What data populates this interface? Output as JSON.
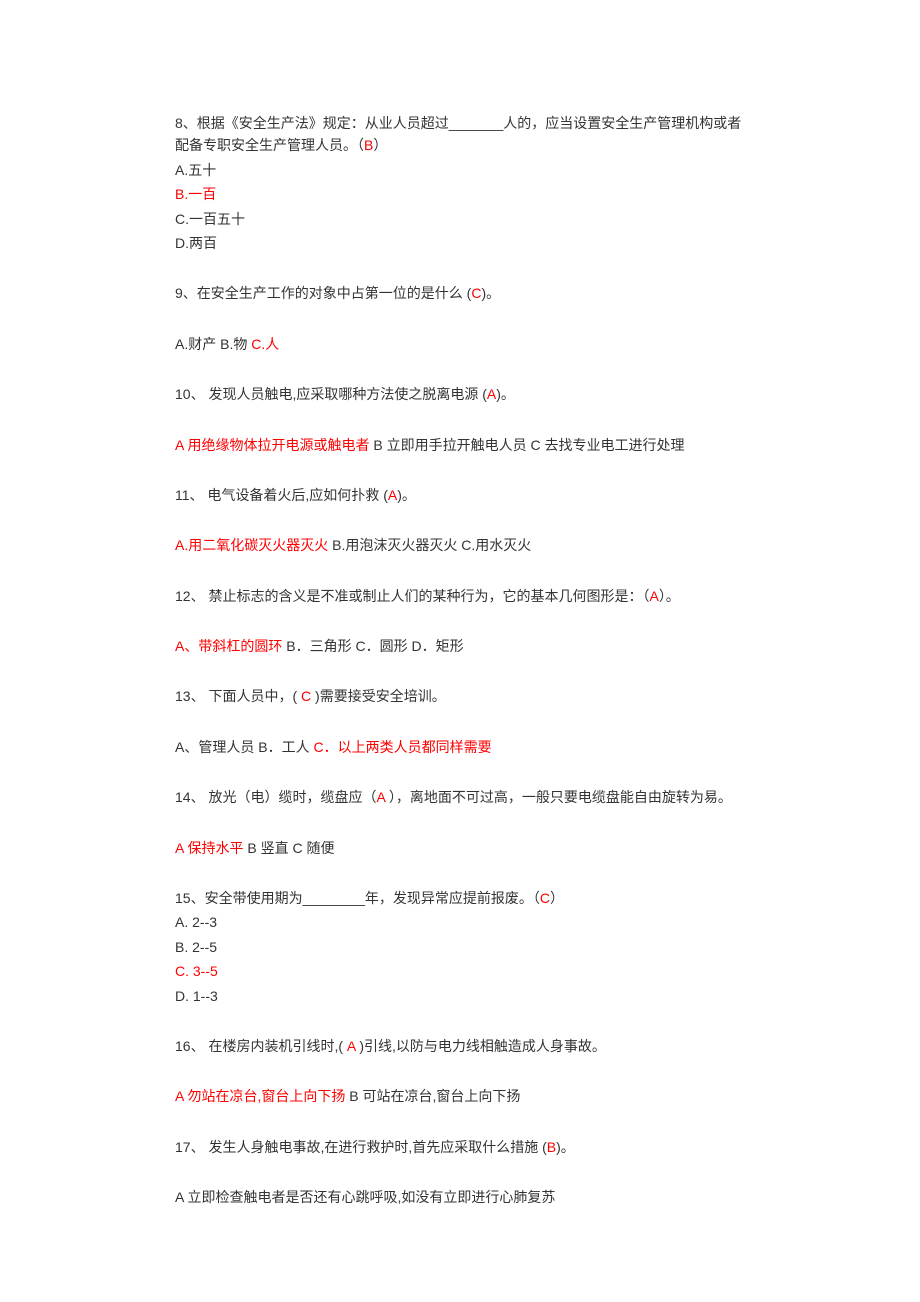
{
  "colors": {
    "text": "#333333",
    "answer": "#ff0000",
    "background": "#ffffff"
  },
  "q8": {
    "stem_a": "8、根据《安全生产法》规定：从业人员超过_______人的，应当设置安全生产管理机构或者配备专职安全生产管理人员。（",
    "stem_key": "B",
    "stem_b": "）",
    "opt_a": "A.五十",
    "opt_b": "B.一百",
    "opt_c": "C.一百五十",
    "opt_d": "D.两百"
  },
  "q9": {
    "stem_a": "9、在安全生产工作的对象中占第一位的是什么 (",
    "stem_key": "C",
    "stem_b": ")。",
    "opt_a": "A.财产  B.物  ",
    "opt_c": "C.人"
  },
  "q10": {
    "stem_a": "10、 发现人员触电,应采取哪种方法使之脱离电源 (",
    "stem_key": "A",
    "stem_b": ")。",
    "opt_a": "A 用绝缘物体拉开电源或触电者",
    "opt_rest": "  B 立即用手拉开触电人员 C 去找专业电工进行处理"
  },
  "q11": {
    "stem_a": "11、 电气设备着火后,应如何扑救 (",
    "stem_key": "A",
    "stem_b": ")。",
    "opt_a": "A.用二氧化碳灭火器灭火",
    "opt_rest": "  B.用泡沫灭火器灭火  C.用水灭火"
  },
  "q12": {
    "stem_a": "12、 禁止标志的含义是不准或制止人们的某种行为，它的基本几何图形是：（",
    "stem_key": "A",
    "stem_b": "）。",
    "opt_a": "A、带斜杠的圆环",
    "opt_rest": "  B．三角形  C．圆形  D．矩形"
  },
  "q13": {
    "stem_a": "13、 下面人员中，( ",
    "stem_key": "C",
    "stem_b": " )需要接受安全培训。",
    "opt_pre": "A、管理人员  B．工人  ",
    "opt_c": "C．以上两类人员都同样需要"
  },
  "q14": {
    "stem_a": "14、 放光（电）缆时，缆盘应（",
    "stem_key": "A",
    "stem_b": " ），离地面不可过高，一般只要电缆盘能自由旋转为易。",
    "opt_a": "A 保持水平",
    "opt_rest": "  B 竖直  C 随便"
  },
  "q15": {
    "stem_a": "15、安全带使用期为________年，发现异常应提前报废。（",
    "stem_key": "C",
    "stem_b": "）",
    "opt_a": " A. 2--3",
    "opt_b": " B. 2--5",
    "opt_c": " C. 3--5",
    "opt_d": " D. 1--3"
  },
  "q16": {
    "stem_a": "16、 在楼房内装机引线时,( ",
    "stem_key": "A",
    "stem_b": " )引线,以防与电力线相触造成人身事故。",
    "opt_a": "A 勿站在凉台,窗台上向下扬",
    "opt_rest": "  B 可站在凉台,窗台上向下扬"
  },
  "q17": {
    "stem_a": "17、 发生人身触电事故,在进行救护时,首先应采取什么措施 (",
    "stem_key": "B",
    "stem_b": ")。",
    "opt_line": "A 立即检查触电者是否还有心跳呼吸,如没有立即进行心肺复苏"
  }
}
